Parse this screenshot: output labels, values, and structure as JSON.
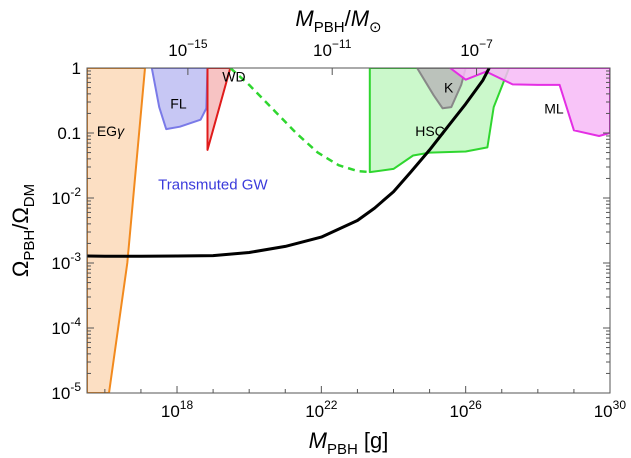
{
  "chart_data": {
    "type": "line",
    "x_scale": "log",
    "y_scale": "log",
    "xlim": [
      3200000000000000.0,
      1e+30
    ],
    "ylim": [
      1e-05,
      1
    ],
    "xlabel": {
      "main": "M",
      "sub": "PBH",
      "rest": " [g]"
    },
    "ylabel": {
      "main1": "Ω",
      "sub1": "PBH",
      "slash": "/",
      "main2": "Ω",
      "sub2": "DM"
    },
    "top_axis": {
      "label": {
        "main": "M",
        "sub": "PBH",
        "slash": "/",
        "sun": "M",
        "sun_sub": "⊙"
      },
      "ticks": [
        {
          "at_grams": 2e+18,
          "label_base": "10",
          "label_exp": "−15"
        },
        {
          "at_grams": 2e+22,
          "label_base": "10",
          "label_exp": "−11"
        },
        {
          "at_grams": 2e+26,
          "label_base": "10",
          "label_exp": "−7"
        }
      ]
    },
    "x_ticks": [
      {
        "value": 1e+18,
        "base": "10",
        "exp": "18"
      },
      {
        "value": 1e+22,
        "base": "10",
        "exp": "22"
      },
      {
        "value": 1e+26,
        "base": "10",
        "exp": "26"
      },
      {
        "value": 1e+30,
        "base": "10",
        "exp": "30"
      }
    ],
    "y_ticks": [
      {
        "value": 1,
        "label": "1"
      },
      {
        "value": 0.1,
        "label": "0.1"
      },
      {
        "value": 0.01,
        "base": "10",
        "exp": "-2"
      },
      {
        "value": 0.001,
        "base": "10",
        "exp": "-3"
      },
      {
        "value": 0.0001,
        "base": "10",
        "exp": "-4"
      },
      {
        "value": 1e-05,
        "base": "10",
        "exp": "-5"
      }
    ],
    "regions": [
      {
        "name": "EGγ",
        "label_main": "EG",
        "label_greek": "γ",
        "label_at": [
          6000000000000000.0,
          0.09
        ],
        "fill": "#fbd9b9",
        "stroke": "#f28a1e",
        "points": [
          [
            3200000000000000.0,
            1
          ],
          [
            1.3e+17,
            1
          ],
          [
            4.2e+16,
            0.001
          ],
          [
            1.3e+16,
            1e-05
          ],
          [
            3200000000000000.0,
            1e-05
          ]
        ]
      },
      {
        "name": "FL",
        "label": "FL",
        "label_at": [
          6.5e+17,
          0.24
        ],
        "fill": "#bdbdf2",
        "stroke": "#7a7ae8",
        "points": [
          [
            2e+17,
            1
          ],
          [
            3.2e+17,
            0.25
          ],
          [
            5e+17,
            0.115
          ],
          [
            1.2e+18,
            0.125
          ],
          [
            4.5e+18,
            0.16
          ],
          [
            6.5e+18,
            0.24
          ],
          [
            7e+18,
            1
          ]
        ]
      },
      {
        "name": "WD",
        "label": "WD",
        "label_at": [
          1.8e+19,
          0.62
        ],
        "fill": "#f6b9b9",
        "stroke": "#e01b1b",
        "points": [
          [
            7e+18,
            0.055
          ],
          [
            7e+18,
            1
          ],
          [
            3e+19,
            1
          ],
          [
            7e+18,
            0.055
          ]
        ]
      },
      {
        "name": "HSC",
        "label": "HSC",
        "label_at": [
          4e+24,
          0.09
        ],
        "fill": "#c2f7c2",
        "stroke": "#2fd62f",
        "points": [
          [
            2.2e+23,
            1
          ],
          [
            2.2e+23,
            0.025
          ],
          [
            1e+24,
            0.028
          ],
          [
            3.5e+24,
            0.045
          ],
          [
            1e+25,
            0.05
          ],
          [
            1e+26,
            0.052
          ],
          [
            4e+26,
            0.06
          ],
          [
            6e+26,
            0.25
          ],
          [
            1.6e+27,
            1
          ]
        ]
      },
      {
        "name": "K",
        "label": "K",
        "label_at": [
          2.5e+25,
          0.42
        ],
        "fill": "#b9b9b9",
        "stroke": "#888888",
        "points": [
          [
            4.5e+24,
            1
          ],
          [
            1.3e+25,
            0.38
          ],
          [
            2.3e+25,
            0.24
          ],
          [
            4e+25,
            0.25
          ],
          [
            7.5e+25,
            0.55
          ],
          [
            1e+26,
            1
          ]
        ]
      },
      {
        "name": "ML",
        "label": "ML",
        "label_at": [
          1.5e+28,
          0.2
        ],
        "fill": "#f7baf7",
        "stroke": "#e42ee4",
        "points": [
          [
            3.7e+25,
            1
          ],
          [
            1e+26,
            0.66
          ],
          [
            3.7e+26,
            0.88
          ],
          [
            2e+27,
            0.56
          ],
          [
            1e+28,
            0.55
          ],
          [
            4e+28,
            0.55
          ],
          [
            1e+29,
            0.11
          ],
          [
            5e+29,
            0.09
          ],
          [
            1e+30,
            0.1
          ],
          [
            1e+30,
            1
          ]
        ]
      }
    ],
    "series": [
      {
        "name": "Transmuted GW",
        "label_at": [
          3e+17,
          0.0135
        ],
        "color": "#000000",
        "points": [
          [
            3200000000000000.0,
            0.00128
          ],
          [
            1e+16,
            0.00127
          ],
          [
            1e+17,
            0.00127
          ],
          [
            1e+18,
            0.00128
          ],
          [
            1e+19,
            0.0013
          ],
          [
            1e+20,
            0.00145
          ],
          [
            1e+21,
            0.0018
          ],
          [
            1e+22,
            0.0025
          ],
          [
            1e+23,
            0.0045
          ],
          [
            3e+23,
            0.007
          ],
          [
            1e+24,
            0.0125
          ],
          [
            3e+24,
            0.025
          ],
          [
            1e+25,
            0.055
          ],
          [
            3e+25,
            0.12
          ],
          [
            1e+26,
            0.28
          ],
          [
            3e+26,
            0.65
          ],
          [
            4.5e+26,
            1
          ]
        ]
      },
      {
        "name": "projection",
        "dashed": true,
        "color": "#2fd62f",
        "points": [
          [
            3e+19,
            1
          ],
          [
            1e+20,
            0.55
          ],
          [
            5e+20,
            0.22
          ],
          [
            2e+21,
            0.1
          ],
          [
            8e+21,
            0.05
          ],
          [
            3e+22,
            0.032
          ],
          [
            1e+23,
            0.026
          ],
          [
            2.2e+23,
            0.025
          ]
        ]
      }
    ]
  }
}
